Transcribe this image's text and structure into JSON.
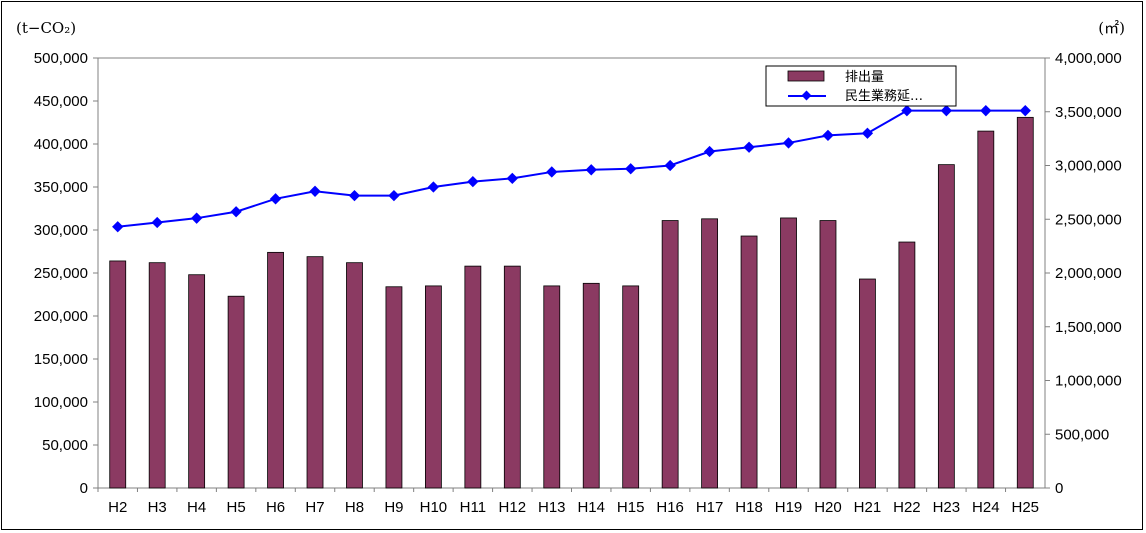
{
  "chart_data": {
    "type": "bar",
    "categories": [
      "H2",
      "H3",
      "H4",
      "H5",
      "H6",
      "H7",
      "H8",
      "H9",
      "H10",
      "H11",
      "H12",
      "H13",
      "H14",
      "H15",
      "H16",
      "H17",
      "H18",
      "H19",
      "H20",
      "H21",
      "H22",
      "H23",
      "H24",
      "H25"
    ],
    "series": [
      {
        "name": "排出量",
        "type": "bar",
        "axis": "left",
        "color": "#8b3a62",
        "values": [
          264000,
          262000,
          248000,
          223000,
          274000,
          269000,
          262000,
          234000,
          235000,
          258000,
          258000,
          235000,
          238000,
          235000,
          311000,
          313000,
          293000,
          314000,
          311000,
          243000,
          286000,
          376000,
          415000,
          431000
        ]
      },
      {
        "name": "民生業務延…",
        "type": "line",
        "axis": "right",
        "color": "#0000ff",
        "values": [
          2430000,
          2470000,
          2510000,
          2570000,
          2690000,
          2760000,
          2720000,
          2720000,
          2800000,
          2850000,
          2880000,
          2940000,
          2960000,
          2970000,
          3000000,
          3130000,
          3170000,
          3210000,
          3280000,
          3300000,
          3510000,
          3510000,
          3510000,
          3510000
        ]
      }
    ],
    "y_left": {
      "unit": "(t−CO₂)",
      "min": 0,
      "max": 500000,
      "ticks": [
        "0",
        "50,000",
        "100,000",
        "150,000",
        "200,000",
        "250,000",
        "300,000",
        "350,000",
        "400,000",
        "450,000",
        "500,000"
      ]
    },
    "y_right": {
      "unit": "(㎡)",
      "min": 0,
      "max": 4000000,
      "ticks": [
        "0",
        "500,000",
        "1,000,000",
        "1,500,000",
        "2,000,000",
        "2,500,000",
        "3,000,000",
        "3,500,000",
        "4,000,000"
      ]
    },
    "grid": false,
    "legend_position": "top-right"
  }
}
